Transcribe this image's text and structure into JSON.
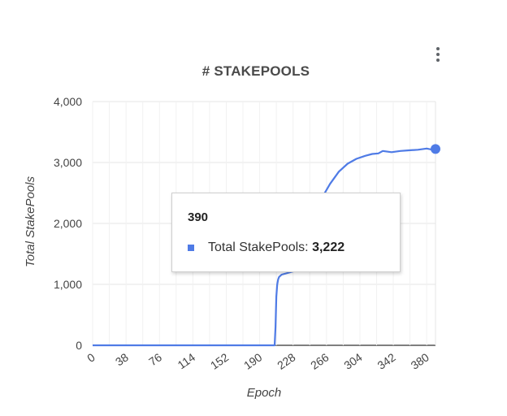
{
  "chart_data": {
    "type": "line",
    "title": "# STAKEPOOLS",
    "xlabel": "Epoch",
    "ylabel": "Total StakePools",
    "xlim": [
      0,
      390
    ],
    "ylim": [
      0,
      4000
    ],
    "x_ticks": [
      "0",
      "38",
      "76",
      "114",
      "152",
      "190",
      "228",
      "266",
      "304",
      "342",
      "380"
    ],
    "y_ticks": [
      "0",
      "1,000",
      "2,000",
      "3,000",
      "4,000"
    ],
    "grid": true,
    "legend": "none",
    "series_color": "#4f7be6",
    "series": [
      {
        "x": [
          0,
          207,
          208,
          209,
          210,
          211,
          212,
          215,
          220,
          230,
          240,
          248,
          255,
          262,
          270,
          280,
          290,
          300,
          310,
          318,
          325,
          330,
          340,
          350,
          360,
          370,
          380,
          385,
          390
        ],
        "y": [
          0,
          0,
          300,
          800,
          1000,
          1080,
          1120,
          1160,
          1180,
          1220,
          1250,
          1500,
          2000,
          2450,
          2650,
          2850,
          2980,
          3060,
          3110,
          3140,
          3150,
          3190,
          3170,
          3190,
          3200,
          3210,
          3230,
          3215,
          3222
        ]
      }
    ],
    "highlight": {
      "x": 390,
      "y": 3222
    }
  },
  "tooltip": {
    "title": "390",
    "series_label": "Total StakePools: ",
    "value": "3,222"
  },
  "menu": {
    "icon": "more-vert-icon"
  }
}
